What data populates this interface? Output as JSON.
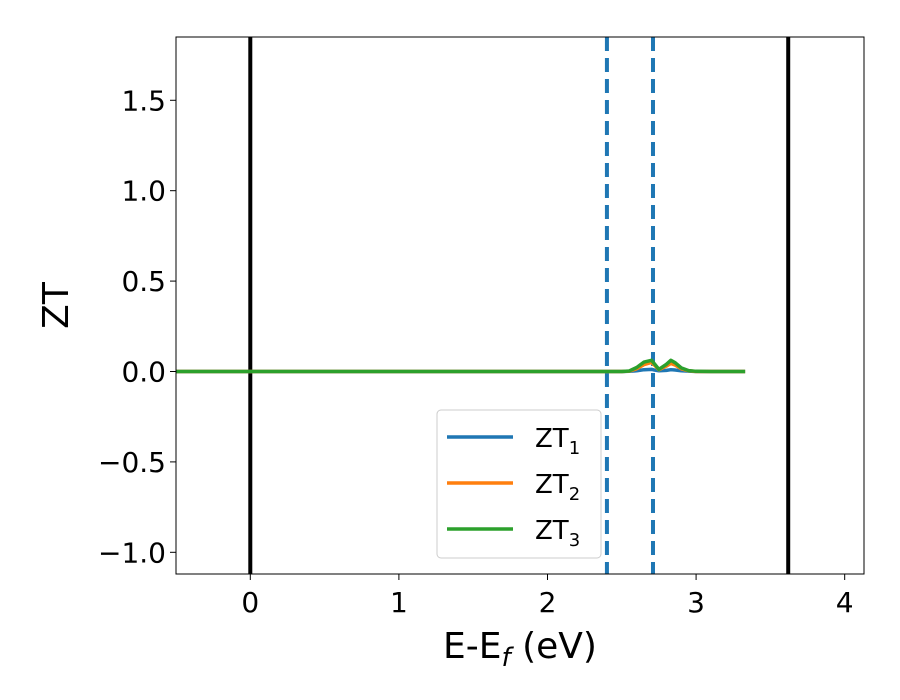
{
  "chart_data": {
    "type": "line",
    "title": "",
    "xlabel": {
      "main": "E-E",
      "sub": "f",
      "unit": " (eV)"
    },
    "ylabel": "ZT",
    "xlim": [
      -0.5,
      4.13
    ],
    "ylim": [
      -1.12,
      1.85
    ],
    "xticks": [
      0,
      1,
      2,
      3,
      4
    ],
    "xtick_labels": [
      "0",
      "1",
      "2",
      "3",
      "4"
    ],
    "yticks": [
      -1.0,
      -0.5,
      0.0,
      0.5,
      1.0,
      1.5
    ],
    "ytick_labels": [
      "−1.0",
      "−0.5",
      "0.0",
      "0.5",
      "1.0",
      "1.5"
    ],
    "grid": false,
    "legend_position": "lower-center",
    "vertical_lines": [
      {
        "x": 0.0,
        "style": "solid",
        "color": "#000000"
      },
      {
        "x": 3.62,
        "style": "solid",
        "color": "#000000"
      },
      {
        "x": 2.4,
        "style": "dashed",
        "color": "#1f77b4"
      },
      {
        "x": 2.71,
        "style": "dashed",
        "color": "#1f77b4"
      }
    ],
    "series": [
      {
        "name": {
          "main": "ZT",
          "sub": "1"
        },
        "color": "#1f77b4",
        "x": [
          -0.5,
          2.5,
          2.55,
          2.6,
          2.65,
          2.7,
          2.72,
          2.75,
          2.8,
          2.83,
          2.86,
          2.9,
          2.95,
          3.0,
          3.1,
          3.33
        ],
        "y": [
          0.0,
          0.0,
          0.001,
          0.004,
          0.01,
          0.012,
          0.008,
          0.004,
          0.006,
          0.01,
          0.008,
          0.004,
          0.002,
          0.0,
          0.0,
          0.0
        ]
      },
      {
        "name": {
          "main": "ZT",
          "sub": "2"
        },
        "color": "#ff7f0e",
        "x": [
          -0.5,
          2.5,
          2.55,
          2.6,
          2.65,
          2.7,
          2.72,
          2.75,
          2.8,
          2.83,
          2.86,
          2.9,
          2.95,
          3.0,
          3.1,
          3.33
        ],
        "y": [
          0.0,
          0.0,
          0.002,
          0.015,
          0.038,
          0.05,
          0.035,
          0.01,
          0.03,
          0.045,
          0.035,
          0.015,
          0.004,
          0.0,
          0.0,
          0.0
        ]
      },
      {
        "name": {
          "main": "ZT",
          "sub": "3"
        },
        "color": "#2ca02c",
        "x": [
          -0.5,
          2.5,
          2.55,
          2.6,
          2.65,
          2.7,
          2.72,
          2.75,
          2.8,
          2.83,
          2.86,
          2.9,
          2.95,
          3.0,
          3.1,
          3.33
        ],
        "y": [
          0.0,
          0.0,
          0.003,
          0.022,
          0.052,
          0.062,
          0.042,
          0.012,
          0.04,
          0.062,
          0.048,
          0.02,
          0.005,
          0.001,
          0.0,
          0.0
        ]
      }
    ]
  }
}
